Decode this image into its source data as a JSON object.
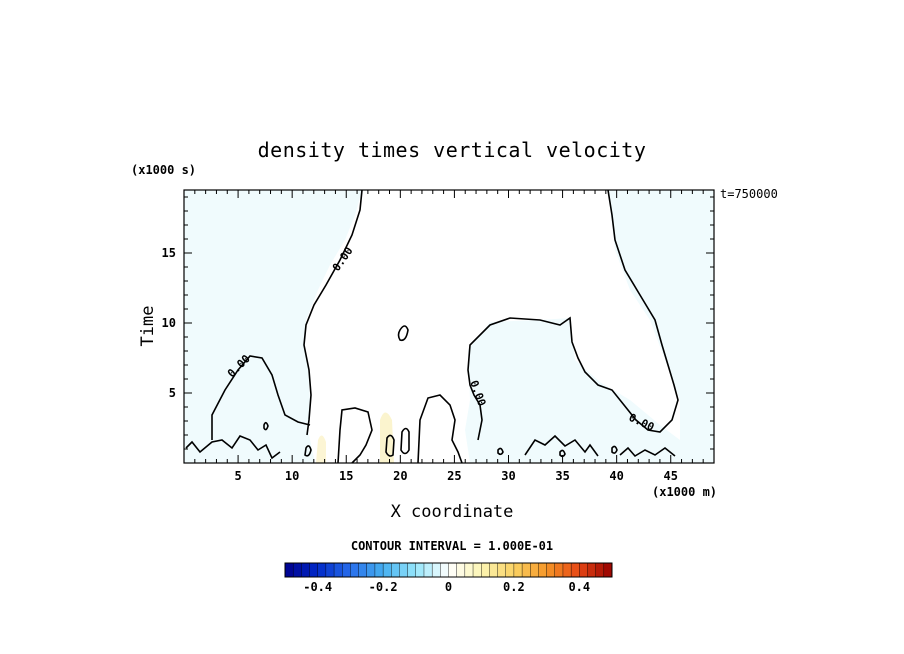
{
  "chart_data": {
    "type": "contour",
    "title": "density times vertical velocity",
    "xlabel": "X coordinate",
    "ylabel": "Time",
    "x_unit": "(x1000 m)",
    "y_unit": "(x1000 s)",
    "time_stamp": "t=750000",
    "xlim": [
      0,
      49
    ],
    "ylim": [
      0,
      19.5
    ],
    "x_ticks": [
      5,
      10,
      15,
      20,
      25,
      30,
      35,
      40,
      45
    ],
    "y_ticks": [
      5,
      10,
      15
    ],
    "contour_label": "0.00",
    "contour_interval_text": "CONTOUR INTERVAL = 1.000E-01",
    "colorbar": {
      "range": [
        -0.5,
        0.5
      ],
      "ticks": [
        "-0.4",
        "-0.2",
        "0",
        "0.2",
        "0.4"
      ],
      "tick_values": [
        -0.4,
        -0.2,
        0,
        0.2,
        0.4
      ]
    },
    "colors": {
      "negative_fill": "#f0fbfd",
      "positive_fill": "#fbf3c9",
      "contour": "#000000"
    }
  }
}
